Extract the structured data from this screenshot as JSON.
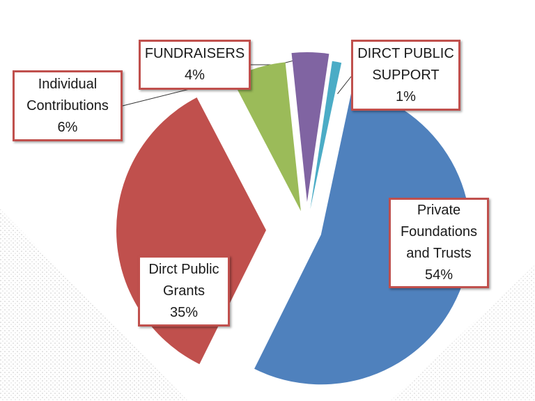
{
  "chart_data": {
    "type": "pie",
    "title": "",
    "exploded": true,
    "slices": [
      {
        "label_lines": [
          "Private",
          "Foundations",
          "and Trusts"
        ],
        "value_label": "54%",
        "value": 54,
        "color": "#4f81bd"
      },
      {
        "label_lines": [
          "Dirct Public",
          "Grants"
        ],
        "value_label": "35%",
        "value": 35,
        "color": "#c0504d"
      },
      {
        "label_lines": [
          "Individual",
          "Contributions"
        ],
        "value_label": "6%",
        "value": 6,
        "color": "#9bbb59"
      },
      {
        "label_lines": [
          "FUNDRAISERS"
        ],
        "value_label": "4%",
        "value": 4,
        "color": "#8064a2"
      },
      {
        "label_lines": [
          "DIRCT PUBLIC",
          "SUPPORT"
        ],
        "value_label": "1%",
        "value": 1,
        "color": "#4bacc6"
      }
    ],
    "label_border_color": "#c0504d"
  }
}
